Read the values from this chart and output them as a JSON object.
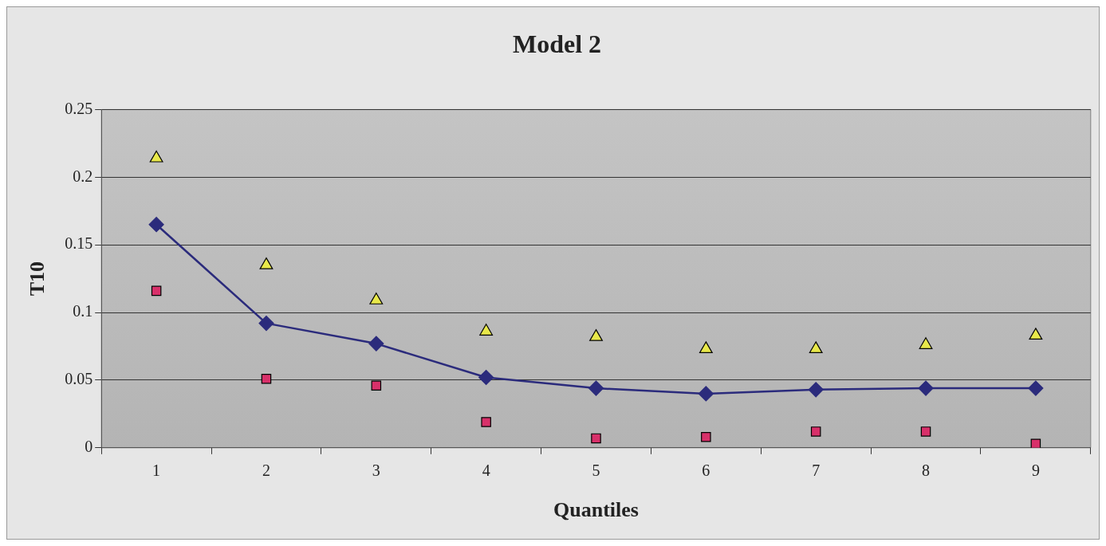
{
  "chart_data": {
    "type": "line",
    "title": "Model 2",
    "xlabel": "Quantiles",
    "ylabel": "T10",
    "categories": [
      "1",
      "2",
      "3",
      "4",
      "5",
      "6",
      "7",
      "8",
      "9"
    ],
    "series": [
      {
        "color": "#2b2b7c",
        "marker": "diamond",
        "values": [
          0.165,
          0.092,
          0.077,
          0.052,
          0.044,
          0.04,
          0.043,
          0.044,
          0.044
        ]
      },
      {
        "type": "scatter",
        "color": "#e8e84a",
        "marker": "triangle",
        "values": [
          0.214,
          0.135,
          0.109,
          0.086,
          0.082,
          0.073,
          0.073,
          0.076,
          0.083
        ]
      },
      {
        "type": "scatter",
        "color": "#d8306a",
        "marker": "square",
        "values": [
          0.116,
          0.051,
          0.046,
          0.019,
          0.007,
          0.008,
          0.012,
          0.012,
          0.003
        ]
      }
    ],
    "ylim": [
      0,
      0.25
    ],
    "yticks": [
      0,
      0.05,
      0.1,
      0.15,
      0.2,
      0.25
    ],
    "grid": "y",
    "legend": false
  }
}
